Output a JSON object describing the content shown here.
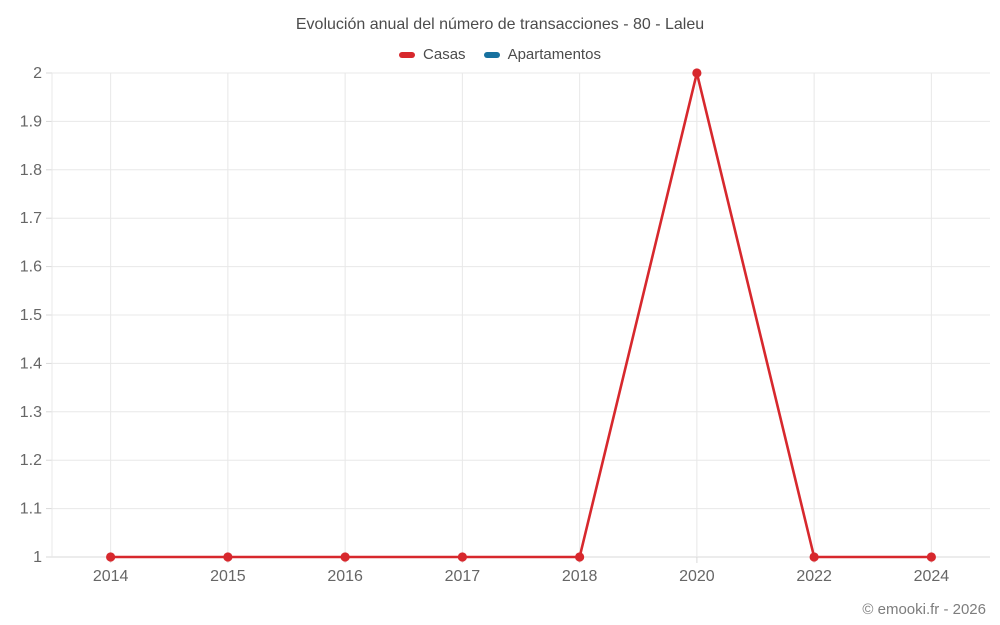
{
  "title": "Evolución anual del número de transacciones - 80 - Laleu",
  "watermark": "© emooki.fr - 2026",
  "colors": {
    "casas": "#d7282d",
    "apartamentos": "#17719f",
    "grid": "#e8e8e8",
    "axis_line": "#d9d9d9",
    "tick": "#d9d9d9",
    "title_text": "#4c4c4c",
    "axis_text": "#666666",
    "watermark_text": "#7d7d7d"
  },
  "legend": [
    {
      "label": "Casas",
      "color": "#d7282d"
    },
    {
      "label": "Apartamentos",
      "color": "#17719f"
    }
  ],
  "chart_data": {
    "type": "line",
    "title": "Evolución anual del número de transacciones - 80 - Laleu",
    "categories": [
      "2014",
      "2015",
      "2016",
      "2017",
      "2018",
      "2020",
      "2022",
      "2024"
    ],
    "series": [
      {
        "name": "Casas",
        "color": "#d7282d",
        "values": [
          1,
          1,
          1,
          1,
          1,
          2,
          1,
          1
        ]
      },
      {
        "name": "Apartamentos",
        "color": "#17719f",
        "values": []
      }
    ],
    "xlabel": "",
    "ylabel": "",
    "ylim": [
      1,
      2
    ],
    "ytick_step": 0.1,
    "grid": true,
    "legend_position": "top"
  }
}
